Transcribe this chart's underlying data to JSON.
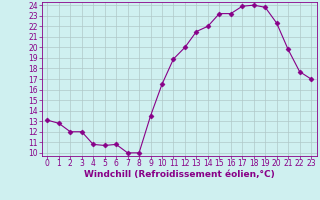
{
  "xlabel": "Windchill (Refroidissement éolien,°C)",
  "x": [
    0,
    1,
    2,
    3,
    4,
    5,
    6,
    7,
    8,
    9,
    10,
    11,
    12,
    13,
    14,
    15,
    16,
    17,
    18,
    19,
    20,
    21,
    22,
    23
  ],
  "y": [
    13.1,
    12.8,
    12.0,
    12.0,
    10.8,
    10.7,
    10.8,
    10.0,
    10.0,
    13.5,
    16.5,
    18.9,
    20.0,
    21.5,
    22.0,
    23.2,
    23.2,
    23.9,
    24.0,
    23.8,
    22.3,
    19.8,
    17.7,
    17.0
  ],
  "line_color": "#880088",
  "marker": "D",
  "marker_size": 2.5,
  "bg_color": "#cff0f0",
  "grid_color": "#b0c8c8",
  "ylim_min": 10,
  "ylim_max": 24,
  "xlim_min": -0.5,
  "xlim_max": 23.5,
  "yticks": [
    10,
    11,
    12,
    13,
    14,
    15,
    16,
    17,
    18,
    19,
    20,
    21,
    22,
    23,
    24
  ],
  "xticks": [
    0,
    1,
    2,
    3,
    4,
    5,
    6,
    7,
    8,
    9,
    10,
    11,
    12,
    13,
    14,
    15,
    16,
    17,
    18,
    19,
    20,
    21,
    22,
    23
  ],
  "tick_color": "#880088",
  "label_color": "#880088",
  "spine_color": "#880088",
  "tick_fontsize": 5.5,
  "xlabel_fontsize": 6.5
}
